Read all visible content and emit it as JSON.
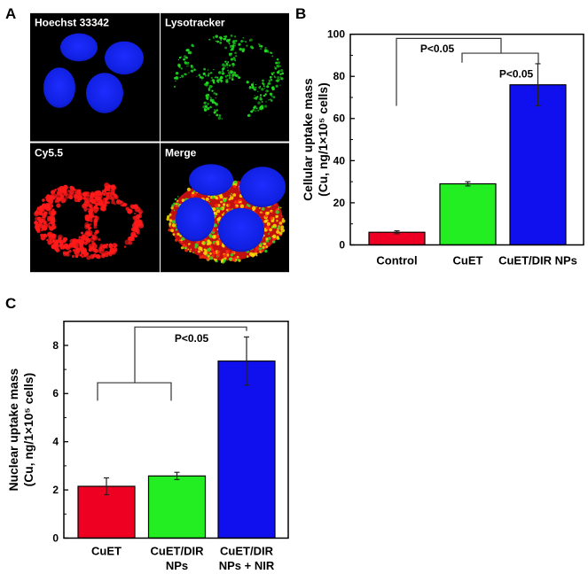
{
  "panel_labels": {
    "a": "A",
    "b": "B",
    "c": "C"
  },
  "panel_a": {
    "images": [
      {
        "label": "Hoechst 33342",
        "channel_color": "#1a1aff"
      },
      {
        "label": "Lysotracker",
        "channel_color": "#22dd22"
      },
      {
        "label": "Cy5.5",
        "channel_color": "#ff1a1a"
      },
      {
        "label": "Merge",
        "channel_color": "#ffdd00"
      }
    ]
  },
  "chart_data": [
    {
      "type": "bar",
      "panel": "B",
      "categories": [
        "Control",
        "CuET",
        "CuET/DIR NPs"
      ],
      "values": [
        6,
        29,
        76
      ],
      "errors": [
        0.7,
        1,
        10
      ],
      "colors": [
        "#ee0022",
        "#22ee22",
        "#1010ee"
      ],
      "ylabel_lines": [
        "Cellular uptake mass",
        "(Cu, ng/1×10⁵ cells)"
      ],
      "ylim": [
        0,
        100
      ],
      "yticks": [
        "0",
        "20",
        "40",
        "60",
        "80",
        "100"
      ],
      "annotations": [
        "P<0.05",
        "P<0.05"
      ],
      "grid": false
    },
    {
      "type": "bar",
      "panel": "C",
      "categories": [
        "CuET",
        "CuET/DIR NPs",
        "CuET/DIR NPs + NIR"
      ],
      "values": [
        2.15,
        2.58,
        7.35
      ],
      "errors": [
        0.35,
        0.15,
        1.0
      ],
      "colors": [
        "#ee0022",
        "#22ee22",
        "#1010ee"
      ],
      "ylabel_lines": [
        "Nuclear uptake mass",
        "(Cu, ng/1×10⁵ cells)"
      ],
      "ylim": [
        0,
        9
      ],
      "yticks": [
        "0",
        "2",
        "4",
        "6",
        "8"
      ],
      "annotations": [
        "P<0.05"
      ],
      "grid": false
    }
  ]
}
